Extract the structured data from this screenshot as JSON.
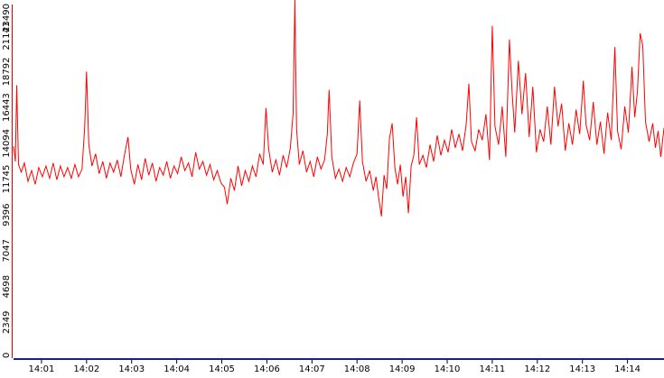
{
  "chart_data": {
    "type": "line",
    "title": "",
    "xlabel": "",
    "ylabel": "",
    "ylim": [
      0,
      23490
    ],
    "y_ticks": [
      "0",
      "2349",
      "4698",
      "7047",
      "9396",
      "11745",
      "14094",
      "16443",
      "18792",
      "21141",
      "23490"
    ],
    "x_ticks": [
      "14:01",
      "14:02",
      "14:03",
      "14:04",
      "14:05",
      "14:06",
      "14:07",
      "14:08",
      "14:09",
      "14:10",
      "14:11",
      "14:12",
      "14:13",
      "14:14"
    ],
    "x_range_minutes": [
      0.38,
      14.81
    ],
    "grid": false,
    "legend": "none",
    "series": [
      {
        "color": "#ff0000",
        "points": [
          [
            0.38,
            13900
          ],
          [
            0.42,
            12900
          ],
          [
            0.45,
            17900
          ],
          [
            0.49,
            12700
          ],
          [
            0.55,
            12200
          ],
          [
            0.62,
            12800
          ],
          [
            0.7,
            11600
          ],
          [
            0.78,
            12300
          ],
          [
            0.86,
            11400
          ],
          [
            0.94,
            12500
          ],
          [
            1.02,
            11900
          ],
          [
            1.1,
            12600
          ],
          [
            1.18,
            11800
          ],
          [
            1.26,
            12800
          ],
          [
            1.34,
            11700
          ],
          [
            1.42,
            12600
          ],
          [
            1.5,
            11900
          ],
          [
            1.58,
            12500
          ],
          [
            1.66,
            11800
          ],
          [
            1.74,
            12700
          ],
          [
            1.82,
            11900
          ],
          [
            1.9,
            12400
          ],
          [
            1.96,
            15200
          ],
          [
            2.0,
            18800
          ],
          [
            2.05,
            14000
          ],
          [
            2.12,
            12600
          ],
          [
            2.2,
            13400
          ],
          [
            2.28,
            12100
          ],
          [
            2.36,
            12900
          ],
          [
            2.44,
            11800
          ],
          [
            2.52,
            12800
          ],
          [
            2.6,
            12200
          ],
          [
            2.68,
            13000
          ],
          [
            2.76,
            11900
          ],
          [
            2.84,
            13300
          ],
          [
            2.92,
            14500
          ],
          [
            2.98,
            12400
          ],
          [
            3.06,
            11400
          ],
          [
            3.14,
            12700
          ],
          [
            3.22,
            11700
          ],
          [
            3.3,
            13100
          ],
          [
            3.38,
            12000
          ],
          [
            3.46,
            12800
          ],
          [
            3.54,
            11600
          ],
          [
            3.62,
            12500
          ],
          [
            3.7,
            12000
          ],
          [
            3.78,
            12900
          ],
          [
            3.86,
            11800
          ],
          [
            3.94,
            12600
          ],
          [
            4.02,
            12100
          ],
          [
            4.1,
            13200
          ],
          [
            4.18,
            12300
          ],
          [
            4.26,
            12800
          ],
          [
            4.34,
            11900
          ],
          [
            4.42,
            13500
          ],
          [
            4.5,
            12400
          ],
          [
            4.58,
            12900
          ],
          [
            4.66,
            12000
          ],
          [
            4.74,
            12700
          ],
          [
            4.82,
            11700
          ],
          [
            4.9,
            12300
          ],
          [
            4.98,
            11500
          ],
          [
            5.06,
            11200
          ],
          [
            5.12,
            10100
          ],
          [
            5.2,
            11800
          ],
          [
            5.28,
            11000
          ],
          [
            5.36,
            12600
          ],
          [
            5.44,
            11300
          ],
          [
            5.52,
            12300
          ],
          [
            5.6,
            11600
          ],
          [
            5.68,
            12600
          ],
          [
            5.76,
            11900
          ],
          [
            5.84,
            13400
          ],
          [
            5.92,
            12700
          ],
          [
            5.98,
            16400
          ],
          [
            6.04,
            13700
          ],
          [
            6.12,
            12200
          ],
          [
            6.2,
            13000
          ],
          [
            6.28,
            12000
          ],
          [
            6.36,
            13300
          ],
          [
            6.44,
            12500
          ],
          [
            6.52,
            13800
          ],
          [
            6.58,
            16000
          ],
          [
            6.62,
            23490
          ],
          [
            6.66,
            15000
          ],
          [
            6.72,
            12700
          ],
          [
            6.8,
            13600
          ],
          [
            6.88,
            12200
          ],
          [
            6.96,
            12900
          ],
          [
            7.04,
            11900
          ],
          [
            7.12,
            13200
          ],
          [
            7.2,
            12400
          ],
          [
            7.28,
            13000
          ],
          [
            7.34,
            14700
          ],
          [
            7.38,
            17600
          ],
          [
            7.44,
            13200
          ],
          [
            7.52,
            11800
          ],
          [
            7.6,
            12400
          ],
          [
            7.68,
            11600
          ],
          [
            7.76,
            12500
          ],
          [
            7.84,
            11900
          ],
          [
            7.92,
            12800
          ],
          [
            8.0,
            13400
          ],
          [
            8.06,
            16900
          ],
          [
            8.12,
            12900
          ],
          [
            8.2,
            11600
          ],
          [
            8.28,
            12300
          ],
          [
            8.36,
            11000
          ],
          [
            8.42,
            11900
          ],
          [
            8.48,
            10500
          ],
          [
            8.54,
            9300
          ],
          [
            8.6,
            12000
          ],
          [
            8.66,
            11100
          ],
          [
            8.72,
            14400
          ],
          [
            8.78,
            15400
          ],
          [
            8.84,
            12500
          ],
          [
            8.9,
            11400
          ],
          [
            8.96,
            12700
          ],
          [
            9.02,
            10600
          ],
          [
            9.08,
            11900
          ],
          [
            9.14,
            9500
          ],
          [
            9.2,
            12600
          ],
          [
            9.26,
            13300
          ],
          [
            9.32,
            15800
          ],
          [
            9.38,
            12700
          ],
          [
            9.46,
            13300
          ],
          [
            9.54,
            12500
          ],
          [
            9.62,
            14000
          ],
          [
            9.7,
            12900
          ],
          [
            9.78,
            14600
          ],
          [
            9.86,
            13300
          ],
          [
            9.94,
            14300
          ],
          [
            10.02,
            13500
          ],
          [
            10.1,
            15000
          ],
          [
            10.18,
            13800
          ],
          [
            10.26,
            14700
          ],
          [
            10.34,
            13600
          ],
          [
            10.42,
            15300
          ],
          [
            10.48,
            18000
          ],
          [
            10.54,
            14200
          ],
          [
            10.62,
            13600
          ],
          [
            10.7,
            15000
          ],
          [
            10.78,
            14300
          ],
          [
            10.86,
            16000
          ],
          [
            10.94,
            13000
          ],
          [
            11.0,
            21800
          ],
          [
            11.06,
            15200
          ],
          [
            11.14,
            14000
          ],
          [
            11.22,
            16500
          ],
          [
            11.3,
            13200
          ],
          [
            11.38,
            20900
          ],
          [
            11.44,
            17400
          ],
          [
            11.5,
            14800
          ],
          [
            11.58,
            19500
          ],
          [
            11.66,
            16000
          ],
          [
            11.74,
            18700
          ],
          [
            11.82,
            14500
          ],
          [
            11.9,
            17800
          ],
          [
            11.98,
            13500
          ],
          [
            12.06,
            15000
          ],
          [
            12.14,
            14200
          ],
          [
            12.22,
            16500
          ],
          [
            12.3,
            14000
          ],
          [
            12.38,
            17800
          ],
          [
            12.46,
            15200
          ],
          [
            12.54,
            16700
          ],
          [
            12.62,
            13600
          ],
          [
            12.7,
            15400
          ],
          [
            12.78,
            14000
          ],
          [
            12.86,
            16300
          ],
          [
            12.94,
            14700
          ],
          [
            13.02,
            18200
          ],
          [
            13.08,
            15300
          ],
          [
            13.16,
            14300
          ],
          [
            13.24,
            16800
          ],
          [
            13.32,
            14000
          ],
          [
            13.4,
            15500
          ],
          [
            13.48,
            13400
          ],
          [
            13.56,
            16100
          ],
          [
            13.64,
            14300
          ],
          [
            13.72,
            20400
          ],
          [
            13.78,
            14900
          ],
          [
            13.86,
            13700
          ],
          [
            13.94,
            16500
          ],
          [
            14.02,
            14800
          ],
          [
            14.1,
            19100
          ],
          [
            14.16,
            15800
          ],
          [
            14.22,
            17500
          ],
          [
            14.28,
            21300
          ],
          [
            14.34,
            20500
          ],
          [
            14.4,
            15500
          ],
          [
            14.48,
            14200
          ],
          [
            14.56,
            15400
          ],
          [
            14.62,
            13800
          ],
          [
            14.68,
            14900
          ],
          [
            14.74,
            13200
          ],
          [
            14.81,
            15100
          ]
        ]
      }
    ]
  }
}
